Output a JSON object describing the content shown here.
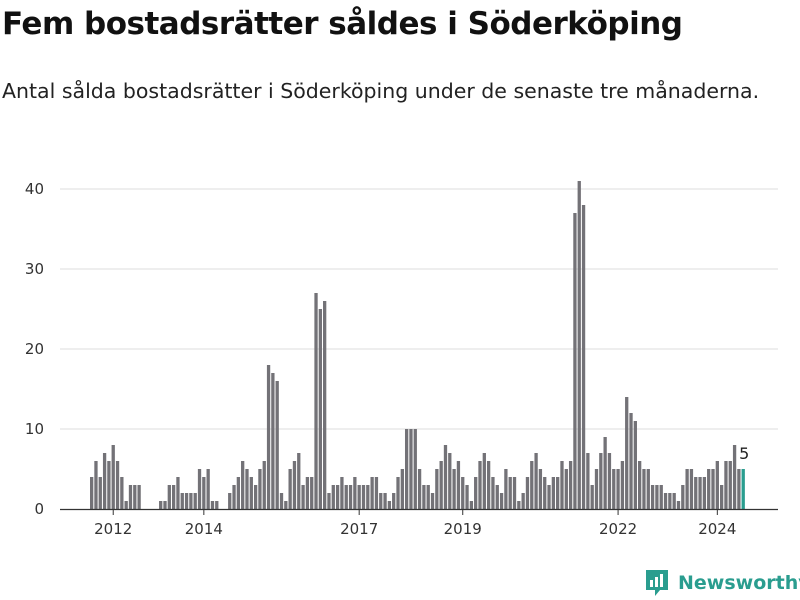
{
  "title": "Fem bostadsrätter såldes i Söderköping",
  "subtitle": "Antal sålda bostadsrätter i Söderköping under de senaste tre månaderna.",
  "brand": "Newsworthy",
  "colors": {
    "bar": "#737277",
    "highlight": "#2a9d8f",
    "grid": "#dddddd",
    "brand": "#2a9d8f"
  },
  "chart_data": {
    "type": "bar",
    "x_start": "2012-01",
    "x_interval": "month",
    "values": [
      4,
      6,
      4,
      7,
      6,
      8,
      6,
      4,
      1,
      3,
      3,
      3,
      0,
      0,
      0,
      0,
      1,
      1,
      3,
      3,
      4,
      2,
      2,
      2,
      2,
      5,
      4,
      5,
      1,
      1,
      0,
      0,
      2,
      3,
      4,
      6,
      5,
      4,
      3,
      5,
      6,
      18,
      17,
      16,
      2,
      1,
      5,
      6,
      7,
      3,
      4,
      4,
      27,
      25,
      26,
      2,
      3,
      3,
      4,
      3,
      3,
      4,
      3,
      3,
      3,
      4,
      4,
      2,
      2,
      1,
      2,
      4,
      5,
      10,
      10,
      10,
      5,
      3,
      3,
      2,
      5,
      6,
      8,
      7,
      5,
      6,
      4,
      3,
      1,
      4,
      6,
      7,
      6,
      4,
      3,
      2,
      5,
      4,
      4,
      1,
      2,
      4,
      6,
      7,
      5,
      4,
      3,
      4,
      4,
      6,
      5,
      6,
      37,
      41,
      38,
      7,
      3,
      5,
      7,
      9,
      7,
      5,
      5,
      6,
      14,
      12,
      11,
      6,
      5,
      5,
      3,
      3,
      3,
      2,
      2,
      2,
      1,
      3,
      5,
      5,
      4,
      4,
      4,
      5,
      5,
      6,
      3,
      6,
      6,
      8,
      5,
      5
    ],
    "highlight_index": 151,
    "highlight_label": "5",
    "ylim": [
      0,
      40
    ],
    "yticks": [
      0,
      10,
      20,
      30,
      40
    ],
    "xticks": [
      {
        "label": "2012",
        "index": 5
      },
      {
        "label": "2014",
        "index": 26
      },
      {
        "label": "2017",
        "index": 62
      },
      {
        "label": "2019",
        "index": 86
      },
      {
        "label": "2022",
        "index": 122
      },
      {
        "label": "2024",
        "index": 145
      }
    ],
    "grid": true,
    "legend": "none"
  }
}
